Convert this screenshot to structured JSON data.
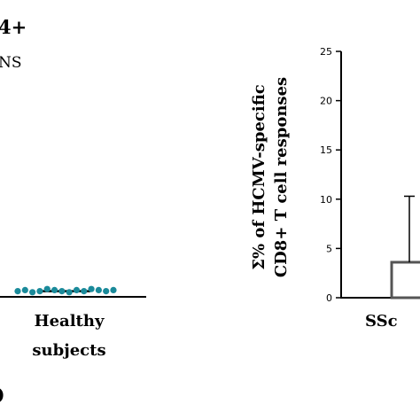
{
  "chart_data": [
    {
      "type": "scatter",
      "panel_title_fragment": "4+",
      "significance_label": "NS",
      "categories": [
        "Healthy\nsubjects"
      ],
      "series": [
        {
          "values": [
            0.2,
            0.3,
            0.1,
            0.2,
            0.4,
            0.3,
            0.2,
            0.1,
            0.3,
            0.2,
            0.4,
            0.3,
            0.2,
            0.3
          ]
        }
      ],
      "median_line": 0.2,
      "marker_color": "#1a8a9a",
      "footer_fragment": ")"
    },
    {
      "type": "bar",
      "ylabel_line1": "Σ% of HCMV-specific",
      "ylabel_line2": "CD8+ T cell responses",
      "categories": [
        "SSc"
      ],
      "values": [
        3.6
      ],
      "error_top": 10.3,
      "ylim": [
        0,
        25
      ],
      "yticks": [
        "0",
        "5",
        "10",
        "15",
        "20",
        "25"
      ],
      "bar_color": "#ffffff",
      "bar_stroke": "#555555"
    }
  ]
}
